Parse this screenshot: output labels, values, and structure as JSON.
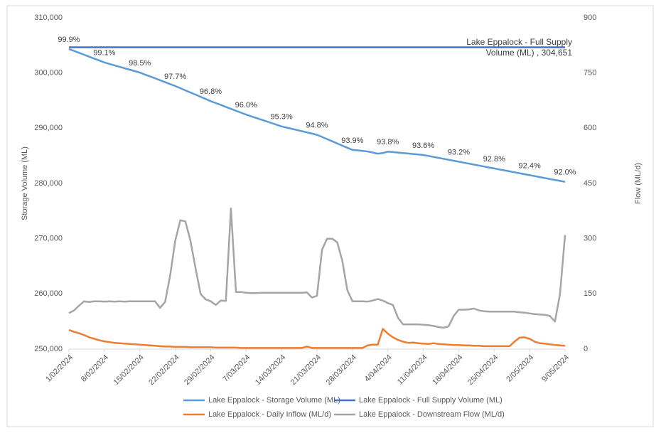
{
  "chart_data": {
    "type": "line",
    "axis_label_y": "Storage Volume (ML)",
    "axis_label_y2": "Flow (ML/d)",
    "annotation": [
      "Lake Eppalock - Full Supply",
      "Volume (ML) , 304,651"
    ],
    "grid": false,
    "legend": "bottom",
    "categories": [
      "1/02/2024",
      null,
      null,
      null,
      null,
      null,
      null,
      "8/02/2024",
      null,
      null,
      null,
      null,
      null,
      null,
      "15/02/2024",
      null,
      null,
      null,
      null,
      null,
      null,
      "22/02/2024",
      null,
      null,
      null,
      null,
      null,
      null,
      "29/02/2024",
      null,
      null,
      null,
      null,
      null,
      null,
      "7/03/2024",
      null,
      null,
      null,
      null,
      null,
      null,
      "14/03/2024",
      null,
      null,
      null,
      null,
      null,
      null,
      "21/03/2024",
      null,
      null,
      null,
      null,
      null,
      null,
      "28/03/2024",
      null,
      null,
      null,
      null,
      null,
      null,
      "4/04/2024",
      null,
      null,
      null,
      null,
      null,
      null,
      "11/04/2024",
      null,
      null,
      null,
      null,
      null,
      null,
      "18/04/2024",
      null,
      null,
      null,
      null,
      null,
      null,
      "25/04/2024",
      null,
      null,
      null,
      null,
      null,
      null,
      "2/05/2024",
      null,
      null,
      null,
      null,
      null,
      null,
      "9/05/2024"
    ],
    "ylim": [
      250000,
      310000
    ],
    "yticks": [
      {
        "value": 250000,
        "label": "250,000"
      },
      {
        "value": 260000,
        "label": "260,000"
      },
      {
        "value": 270000,
        "label": "270,000"
      },
      {
        "value": 280000,
        "label": "280,000"
      },
      {
        "value": 290000,
        "label": "290,000"
      },
      {
        "value": 300000,
        "label": "300,000"
      },
      {
        "value": 310000,
        "label": "310,000"
      }
    ],
    "y2lim": [
      0,
      900
    ],
    "y2ticks": [
      0,
      150,
      300,
      450,
      600,
      750,
      900
    ],
    "series": [
      {
        "name": "Lake Eppalock - Storage Volume (ML)",
        "color": "#5b9bd5",
        "axis": "y",
        "values": [
          304346,
          304000,
          303650,
          303300,
          302950,
          302610,
          302260,
          301909,
          301650,
          301390,
          301130,
          300860,
          300600,
          300340,
          300081,
          299730,
          299390,
          299040,
          298690,
          298340,
          297990,
          297644,
          297250,
          296860,
          296470,
          296080,
          295690,
          295290,
          294902,
          294550,
          294210,
          293860,
          293510,
          293160,
          292810,
          292465,
          292160,
          291860,
          291550,
          291250,
          290940,
          290640,
          290332,
          290110,
          289900,
          289680,
          289460,
          289240,
          289030,
          288809,
          288420,
          288030,
          287630,
          287240,
          286850,
          286460,
          286067,
          286000,
          285900,
          285800,
          285600,
          285400,
          285500,
          285763,
          285680,
          285590,
          285500,
          285420,
          285330,
          285240,
          285153,
          284980,
          284800,
          284630,
          284460,
          284290,
          284110,
          283935,
          283760,
          283590,
          283410,
          283240,
          283070,
          282890,
          282716,
          282540,
          282370,
          282200,
          282020,
          281850,
          281670,
          281498,
          281330,
          281150,
          280980,
          280800,
          280630,
          280460,
          280279
        ],
        "value_labels": [
          "99.9%",
          null,
          null,
          null,
          null,
          null,
          null,
          "99.1%",
          null,
          null,
          null,
          null,
          null,
          null,
          "98.5%",
          null,
          null,
          null,
          null,
          null,
          null,
          "97.7%",
          null,
          null,
          null,
          null,
          null,
          null,
          "96.8%",
          null,
          null,
          null,
          null,
          null,
          null,
          "96.0%",
          null,
          null,
          null,
          null,
          null,
          null,
          "95.3%",
          null,
          null,
          null,
          null,
          null,
          null,
          "94.8%",
          null,
          null,
          null,
          null,
          null,
          null,
          "93.9%",
          null,
          null,
          null,
          null,
          null,
          null,
          "93.8%",
          null,
          null,
          null,
          null,
          null,
          null,
          "93.6%",
          null,
          null,
          null,
          null,
          null,
          null,
          "93.2%",
          null,
          null,
          null,
          null,
          null,
          null,
          "92.8%",
          null,
          null,
          null,
          null,
          null,
          null,
          "92.4%",
          null,
          null,
          null,
          null,
          null,
          null,
          "92.0%"
        ]
      },
      {
        "name": "Lake Eppalock - Full Supply Volume (ML)",
        "color": "#4472c4",
        "axis": "y",
        "values": [
          304651,
          304651,
          304651,
          304651,
          304651,
          304651,
          304651,
          304651,
          304651,
          304651,
          304651,
          304651,
          304651,
          304651,
          304651,
          304651,
          304651,
          304651,
          304651,
          304651,
          304651,
          304651,
          304651,
          304651,
          304651,
          304651,
          304651,
          304651,
          304651,
          304651,
          304651,
          304651,
          304651,
          304651,
          304651,
          304651,
          304651,
          304651,
          304651,
          304651,
          304651,
          304651,
          304651,
          304651,
          304651,
          304651,
          304651,
          304651,
          304651,
          304651,
          304651,
          304651,
          304651,
          304651,
          304651,
          304651,
          304651,
          304651,
          304651,
          304651,
          304651,
          304651,
          304651,
          304651,
          304651,
          304651,
          304651,
          304651,
          304651,
          304651,
          304651,
          304651,
          304651,
          304651,
          304651,
          304651,
          304651,
          304651,
          304651,
          304651,
          304651,
          304651,
          304651,
          304651,
          304651,
          304651,
          304651,
          304651,
          304651,
          304651,
          304651,
          304651,
          304651,
          304651,
          304651,
          304651,
          304651,
          304651,
          304651
        ]
      },
      {
        "name": "Lake Eppalock - Daily Inflow (ML/d)",
        "color": "#ed7d31",
        "axis": "y2",
        "values": [
          52,
          47,
          43,
          38,
          32,
          28,
          24,
          21,
          19,
          17,
          16,
          15,
          14,
          13,
          12,
          11,
          10,
          9,
          8,
          7,
          7,
          6,
          6,
          6,
          5,
          5,
          5,
          5,
          5,
          4,
          4,
          4,
          4,
          4,
          3,
          3,
          3,
          3,
          3,
          3,
          3,
          3,
          3,
          3,
          3,
          3,
          3,
          7,
          3,
          3,
          3,
          3,
          3,
          3,
          3,
          3,
          3,
          3,
          3,
          10,
          12,
          12,
          55,
          42,
          32,
          25,
          20,
          17,
          18,
          16,
          15,
          14,
          16,
          14,
          13,
          12,
          11,
          11,
          10,
          10,
          9,
          9,
          8,
          8,
          8,
          8,
          8,
          8,
          20,
          31,
          32,
          28,
          20,
          16,
          15,
          13,
          11,
          10,
          9
        ]
      },
      {
        "name": "Lake Eppalock - Downstream Flow (ML/d)",
        "color": "#a5a5a5",
        "axis": "y2",
        "values": [
          98,
          105,
          118,
          130,
          128,
          130,
          130,
          129,
          130,
          129,
          130,
          129,
          130,
          130,
          130,
          130,
          130,
          130,
          112,
          128,
          200,
          295,
          350,
          347,
          295,
          220,
          150,
          135,
          130,
          120,
          132,
          131,
          382,
          155,
          155,
          153,
          152,
          152,
          153,
          153,
          153,
          153,
          153,
          153,
          153,
          153,
          153,
          154,
          140,
          145,
          270,
          300,
          300,
          290,
          240,
          160,
          130,
          130,
          130,
          129,
          132,
          136,
          132,
          125,
          120,
          85,
          67,
          67,
          67,
          67,
          66,
          65,
          63,
          60,
          58,
          62,
          90,
          107,
          107,
          108,
          110,
          105,
          103,
          102,
          102,
          102,
          102,
          102,
          102,
          100,
          99,
          97,
          95,
          94,
          93,
          90,
          75,
          150,
          310
        ]
      }
    ]
  }
}
